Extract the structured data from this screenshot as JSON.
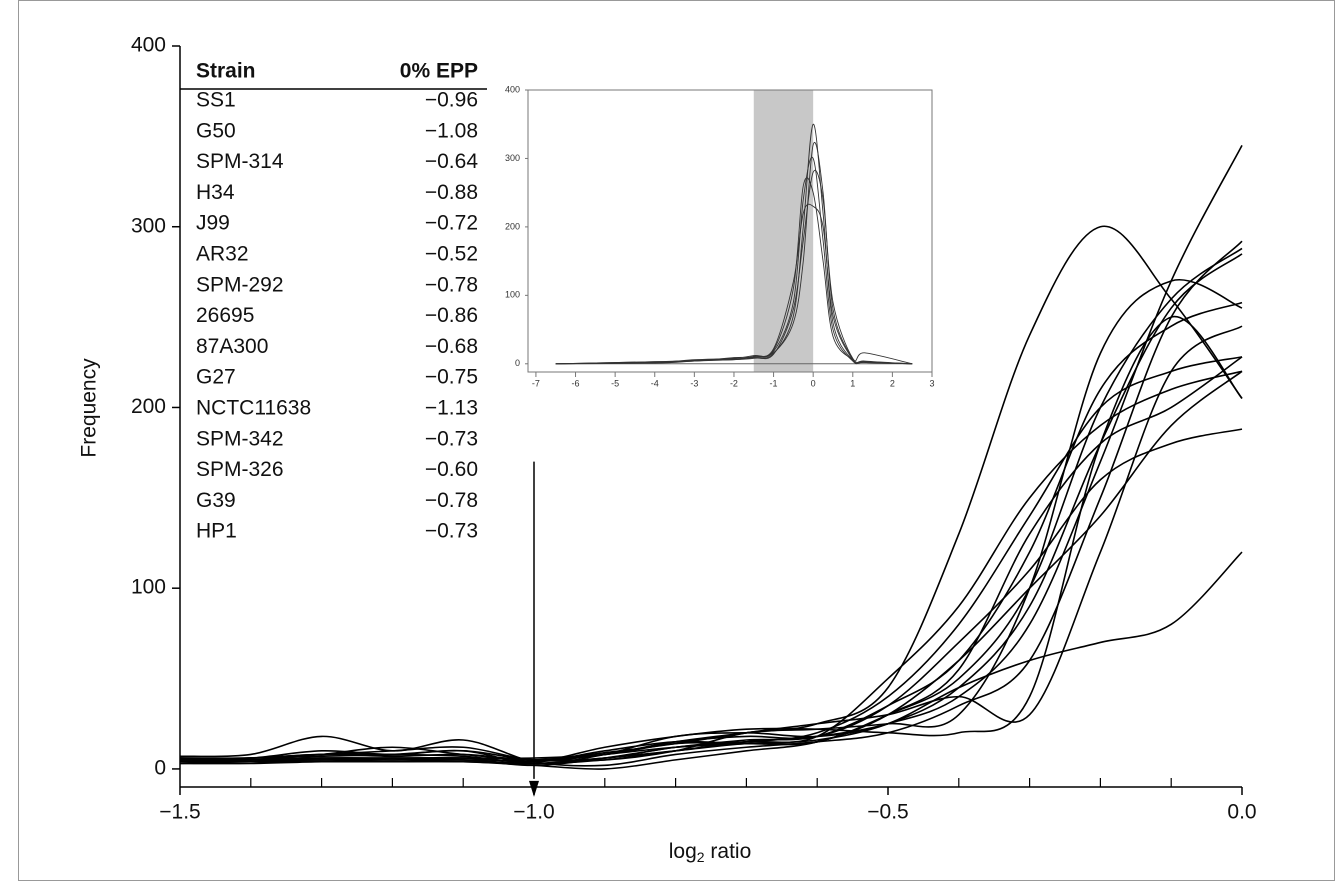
{
  "chart_data": [
    {
      "type": "line",
      "ylabel": "Frequency",
      "xlabel": [
        "log",
        "2",
        " ratio"
      ],
      "xlim": [
        -1.5,
        0
      ],
      "ylim": [
        -10,
        400
      ],
      "xticks": [
        {
          "value": -1.5,
          "label": "−1.5"
        },
        {
          "value": -1,
          "label": "−1.0"
        },
        {
          "value": -0.5,
          "label": "−0.5"
        },
        {
          "value": 0,
          "label": "0.0"
        }
      ],
      "xminorticks": [
        -1.4,
        -1.3,
        -1.2,
        -1.1,
        -0.9,
        -0.8,
        -0.7,
        -0.6,
        -0.4,
        -0.3,
        -0.2,
        -0.1
      ],
      "yticks": [
        0,
        100,
        200,
        300,
        400
      ],
      "color": "#000000",
      "x": [
        -1.5,
        -1.4,
        -1.3,
        -1.2,
        -1.1,
        -1.0,
        -0.9,
        -0.8,
        -0.7,
        -0.6,
        -0.5,
        -0.4,
        -0.3,
        -0.2,
        -0.1,
        0
      ],
      "series": [
        {
          "values": [
            6,
            6,
            8,
            10,
            12,
            5,
            8,
            15,
            20,
            25,
            45,
            130,
            240,
            300,
            260,
            205
          ]
        },
        {
          "values": [
            5,
            5,
            5,
            6,
            5,
            3,
            5,
            10,
            15,
            18,
            25,
            40,
            80,
            170,
            270,
            345
          ]
        },
        {
          "values": [
            7,
            8,
            18,
            10,
            16,
            4,
            2,
            8,
            12,
            15,
            20,
            35,
            60,
            150,
            250,
            292
          ]
        },
        {
          "values": [
            4,
            4,
            6,
            5,
            6,
            4,
            10,
            15,
            14,
            15,
            30,
            50,
            100,
            200,
            260,
            288
          ]
        },
        {
          "values": [
            5,
            6,
            10,
            8,
            10,
            3,
            8,
            18,
            20,
            18,
            25,
            45,
            90,
            180,
            255,
            285
          ]
        },
        {
          "values": [
            3,
            4,
            5,
            4,
            5,
            2,
            6,
            12,
            16,
            18,
            35,
            60,
            120,
            210,
            245,
            258
          ]
        },
        {
          "values": [
            6,
            5,
            8,
            12,
            8,
            5,
            5,
            10,
            20,
            22,
            25,
            30,
            100,
            230,
            270,
            255
          ]
        },
        {
          "values": [
            5,
            5,
            6,
            6,
            6,
            6,
            8,
            14,
            15,
            20,
            40,
            80,
            140,
            200,
            220,
            228
          ]
        },
        {
          "values": [
            4,
            4,
            4,
            4,
            4,
            3,
            6,
            10,
            14,
            15,
            30,
            55,
            130,
            180,
            200,
            228
          ]
        },
        {
          "values": [
            6,
            6,
            7,
            8,
            10,
            5,
            6,
            12,
            15,
            18,
            50,
            90,
            150,
            190,
            210,
            220
          ]
        },
        {
          "values": [
            5,
            6,
            8,
            8,
            7,
            4,
            12,
            18,
            22,
            22,
            20,
            20,
            40,
            180,
            250,
            205
          ]
        },
        {
          "values": [
            4,
            5,
            5,
            5,
            5,
            5,
            8,
            15,
            18,
            18,
            35,
            70,
            110,
            160,
            180,
            188
          ]
        },
        {
          "values": [
            5,
            5,
            6,
            6,
            6,
            4,
            8,
            12,
            14,
            16,
            25,
            45,
            60,
            70,
            80,
            120
          ]
        },
        {
          "values": [
            6,
            6,
            8,
            7,
            8,
            5,
            9,
            14,
            20,
            25,
            30,
            40,
            30,
            120,
            220,
            245
          ]
        },
        {
          "values": [
            3,
            3,
            4,
            4,
            4,
            2,
            0,
            5,
            10,
            15,
            30,
            60,
            100,
            140,
            190,
            220
          ]
        }
      ],
      "arrow": {
        "x": -1,
        "y": [
          170,
          0
        ]
      },
      "table": {
        "header": [
          "Strain",
          "0% EPP"
        ],
        "rows": [
          [
            "SS1",
            "−0.96"
          ],
          [
            "G50",
            "−1.08"
          ],
          [
            "SPM-314",
            "−0.64"
          ],
          [
            "H34",
            "−0.88"
          ],
          [
            "J99",
            "−0.72"
          ],
          [
            "AR32",
            "−0.52"
          ],
          [
            "SPM-292",
            "−0.78"
          ],
          [
            "26695",
            "−0.86"
          ],
          [
            "87A300",
            "−0.68"
          ],
          [
            "G27",
            "−0.75"
          ],
          [
            "NCTC11638",
            "−1.13"
          ],
          [
            "SPM-342",
            "−0.73"
          ],
          [
            "SPM-326",
            "−0.60"
          ],
          [
            "G39",
            "−0.78"
          ],
          [
            "HP1",
            "−0.73"
          ]
        ]
      }
    },
    {
      "type": "line",
      "xlim": [
        -7.2,
        3
      ],
      "ylim": [
        -12,
        400
      ],
      "xticks": [
        -7,
        -6,
        -5,
        -4,
        -3,
        -2,
        -1,
        0,
        1,
        2,
        3
      ],
      "yticks": [
        0,
        100,
        200,
        300,
        400
      ],
      "shade": [
        -1.5,
        0
      ],
      "shade_color": "#c8c8c8",
      "color": "#333333",
      "x": [
        -6.5,
        -4,
        -3,
        -2,
        -1.5,
        -1,
        -0.5,
        -0.25,
        0,
        0.25,
        0.5,
        1,
        1.3,
        2.5
      ],
      "series": [
        {
          "values": [
            0,
            2,
            4,
            6,
            8,
            15,
            70,
            200,
            350,
            220,
            60,
            5,
            2,
            0
          ]
        },
        {
          "values": [
            0,
            3,
            5,
            7,
            10,
            18,
            90,
            240,
            300,
            180,
            50,
            4,
            3,
            0
          ]
        },
        {
          "values": [
            0,
            2,
            6,
            8,
            12,
            20,
            110,
            260,
            250,
            150,
            40,
            6,
            2,
            0
          ]
        },
        {
          "values": [
            0,
            1,
            4,
            7,
            9,
            14,
            80,
            180,
            280,
            240,
            90,
            8,
            16,
            0
          ]
        },
        {
          "values": [
            0,
            2,
            5,
            6,
            11,
            22,
            120,
            220,
            230,
            200,
            70,
            6,
            3,
            0
          ]
        },
        {
          "values": [
            0,
            3,
            4,
            9,
            10,
            16,
            60,
            150,
            320,
            250,
            80,
            7,
            4,
            0
          ]
        }
      ]
    }
  ]
}
